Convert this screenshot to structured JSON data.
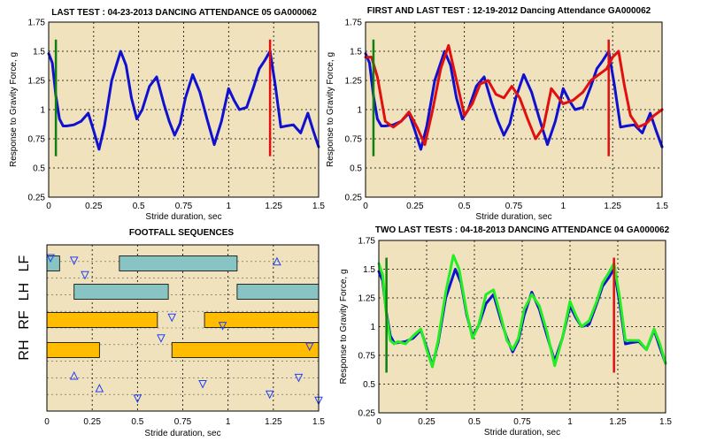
{
  "colors": {
    "plot_bg": "#f0e2bc",
    "blue": "#1010d0",
    "red": "#e01010",
    "green_marker": "#108010",
    "bright_green": "#22ee22",
    "teal_bar": "#88c4c4",
    "orange_bar": "#ffbc00",
    "triangle": "#2040ff"
  },
  "chart_data": [
    {
      "id": "last_test",
      "type": "line",
      "title": "LAST TEST : 04-23-2013 DANCING ATTENDANCE 05 GA000062",
      "xlabel": "Stride duration, sec",
      "ylabel": "Response to Gravity Force, g",
      "xlim": [
        0,
        1.5
      ],
      "ylim": [
        0.25,
        1.75
      ],
      "xticks": [
        "0",
        "0.25",
        "0.5",
        "0.75",
        "1",
        "1.25",
        "1.5"
      ],
      "yticks": [
        "0.25",
        "0.5",
        "0.75",
        "1",
        "1.25",
        "1.5",
        "1.75"
      ],
      "grid": true,
      "markers": [
        {
          "x": 0.04,
          "y0": 0.6,
          "y1": 1.6,
          "color": "green"
        },
        {
          "x": 1.23,
          "y0": 0.6,
          "y1": 1.6,
          "color": "red"
        }
      ],
      "series": [
        {
          "color": "blue",
          "x": [
            0,
            0.02,
            0.04,
            0.06,
            0.08,
            0.1,
            0.14,
            0.18,
            0.22,
            0.25,
            0.28,
            0.31,
            0.35,
            0.4,
            0.43,
            0.46,
            0.49,
            0.52,
            0.56,
            0.6,
            0.64,
            0.67,
            0.7,
            0.73,
            0.76,
            0.8,
            0.84,
            0.88,
            0.92,
            0.96,
            1.0,
            1.03,
            1.06,
            1.1,
            1.14,
            1.17,
            1.2,
            1.23,
            1.26,
            1.29,
            1.32,
            1.36,
            1.4,
            1.44,
            1.47,
            1.5
          ],
          "y": [
            1.48,
            1.4,
            1.12,
            0.92,
            0.86,
            0.86,
            0.87,
            0.9,
            0.97,
            0.82,
            0.66,
            0.86,
            1.25,
            1.5,
            1.38,
            1.1,
            0.92,
            1.0,
            1.2,
            1.28,
            1.05,
            0.9,
            0.78,
            0.88,
            1.1,
            1.3,
            1.15,
            0.92,
            0.7,
            0.9,
            1.18,
            1.08,
            1.0,
            1.02,
            1.2,
            1.35,
            1.42,
            1.5,
            1.2,
            0.85,
            0.86,
            0.87,
            0.8,
            0.97,
            0.82,
            0.68
          ]
        }
      ]
    },
    {
      "id": "first_last",
      "type": "line",
      "title": "FIRST AND LAST TEST : 12-19-2012 Dancing Attendance GA000062",
      "xlabel": "Stride duration, sec",
      "ylabel": "Response to Gravity Force, g",
      "xlim": [
        0,
        1.5
      ],
      "ylim": [
        0.25,
        1.75
      ],
      "xticks": [
        "0",
        "0.25",
        "0.5",
        "0.75",
        "1",
        "1.25",
        "1.5"
      ],
      "yticks": [
        "0.25",
        "0.5",
        "0.75",
        "1",
        "1.25",
        "1.5",
        "1.75"
      ],
      "grid": true,
      "markers": [
        {
          "x": 0.04,
          "y0": 0.6,
          "y1": 1.6,
          "color": "green"
        },
        {
          "x": 1.23,
          "y0": 0.6,
          "y1": 1.6,
          "color": "red"
        }
      ],
      "series": [
        {
          "color": "blue",
          "x": [
            0,
            0.02,
            0.04,
            0.06,
            0.08,
            0.1,
            0.14,
            0.18,
            0.22,
            0.25,
            0.28,
            0.31,
            0.35,
            0.4,
            0.43,
            0.46,
            0.49,
            0.52,
            0.56,
            0.6,
            0.64,
            0.67,
            0.7,
            0.73,
            0.76,
            0.8,
            0.84,
            0.88,
            0.92,
            0.96,
            1.0,
            1.03,
            1.06,
            1.1,
            1.14,
            1.17,
            1.2,
            1.23,
            1.26,
            1.29,
            1.32,
            1.36,
            1.4,
            1.44,
            1.47,
            1.5
          ],
          "y": [
            1.48,
            1.4,
            1.12,
            0.92,
            0.86,
            0.86,
            0.87,
            0.9,
            0.97,
            0.82,
            0.66,
            0.86,
            1.25,
            1.5,
            1.38,
            1.1,
            0.92,
            1.0,
            1.2,
            1.28,
            1.05,
            0.9,
            0.78,
            0.88,
            1.1,
            1.3,
            1.15,
            0.92,
            0.7,
            0.9,
            1.18,
            1.08,
            1.0,
            1.02,
            1.2,
            1.35,
            1.42,
            1.5,
            1.2,
            0.85,
            0.86,
            0.87,
            0.8,
            0.97,
            0.82,
            0.68
          ]
        },
        {
          "color": "red",
          "x": [
            0,
            0.03,
            0.06,
            0.1,
            0.14,
            0.18,
            0.22,
            0.26,
            0.3,
            0.34,
            0.38,
            0.42,
            0.46,
            0.5,
            0.54,
            0.58,
            0.62,
            0.66,
            0.7,
            0.74,
            0.78,
            0.82,
            0.86,
            0.9,
            0.94,
            1.0,
            1.05,
            1.1,
            1.14,
            1.18,
            1.22,
            1.25,
            1.28,
            1.31,
            1.34,
            1.38,
            1.42,
            1.46,
            1.5
          ],
          "y": [
            1.45,
            1.45,
            1.28,
            0.9,
            0.85,
            0.9,
            0.98,
            0.85,
            0.7,
            1.0,
            1.35,
            1.55,
            1.25,
            0.95,
            1.05,
            1.22,
            1.25,
            1.13,
            1.1,
            1.2,
            1.1,
            0.92,
            0.75,
            0.85,
            1.18,
            1.05,
            1.08,
            1.15,
            1.25,
            1.3,
            1.35,
            1.45,
            1.5,
            1.2,
            0.95,
            0.85,
            0.88,
            0.95,
            1.0
          ]
        }
      ]
    },
    {
      "id": "footfall",
      "type": "gantt",
      "title": "FOOTFALL SEQUENCES",
      "xlabel": "Stride duration, sec",
      "xlim": [
        0,
        1.5
      ],
      "xticks": [
        "0",
        "0.25",
        "0.5",
        "0.75",
        "1",
        "1.25",
        "1.5"
      ],
      "grid": true,
      "rows": [
        {
          "label": "LF",
          "color": "teal",
          "intervals": [
            [
              0,
              0.07
            ],
            [
              0.4,
              1.05
            ]
          ]
        },
        {
          "label": "LH",
          "color": "teal",
          "intervals": [
            [
              0.15,
              0.67
            ],
            [
              1.05,
              1.5
            ]
          ]
        },
        {
          "label": "RF",
          "color": "orange",
          "intervals": [
            [
              0,
              0.61
            ],
            [
              0.87,
              1.5
            ]
          ]
        },
        {
          "label": "RH",
          "color": "orange",
          "intervals": [
            [
              0,
              0.29
            ],
            [
              0.69,
              1.5
            ]
          ]
        }
      ],
      "triangles": [
        {
          "x": 0.02,
          "y": 0.32,
          "dir": "down"
        },
        {
          "x": 0.15,
          "y": 0.38,
          "dir": "down"
        },
        {
          "x": 0.21,
          "y": 0.73,
          "dir": "down"
        },
        {
          "x": 0.29,
          "y": 3.45,
          "dir": "up"
        },
        {
          "x": 0.15,
          "y": 3.15,
          "dir": "up"
        },
        {
          "x": 0.5,
          "y": 3.7,
          "dir": "down"
        },
        {
          "x": 0.63,
          "y": 2.25,
          "dir": "down"
        },
        {
          "x": 0.69,
          "y": 1.75,
          "dir": "down"
        },
        {
          "x": 0.86,
          "y": 3.35,
          "dir": "down"
        },
        {
          "x": 0.97,
          "y": 1.95,
          "dir": "down"
        },
        {
          "x": 1.23,
          "y": 3.6,
          "dir": "down"
        },
        {
          "x": 1.27,
          "y": 0.4,
          "dir": "up"
        },
        {
          "x": 1.39,
          "y": 3.2,
          "dir": "down"
        },
        {
          "x": 1.45,
          "y": 2.45,
          "dir": "down"
        },
        {
          "x": 1.5,
          "y": 3.75,
          "dir": "down"
        }
      ]
    },
    {
      "id": "two_last",
      "type": "line",
      "title": "TWO LAST TESTS : 04-18-2013 DANCING ATTENDANCE 04 GA000062",
      "xlabel": "Stride duration, sec",
      "ylabel": "Response to Gravity Force, g",
      "xlim": [
        0,
        1.5
      ],
      "ylim": [
        0.25,
        1.75
      ],
      "xticks": [
        "0",
        "0.25",
        "0.5",
        "0.75",
        "1",
        "1.25",
        "1.5"
      ],
      "yticks": [
        "0.25",
        "0.5",
        "0.75",
        "1",
        "1.25",
        "1.5",
        "1.75"
      ],
      "grid": true,
      "markers": [
        {
          "x": 0.04,
          "y0": 0.6,
          "y1": 1.6,
          "color": "green"
        },
        {
          "x": 1.23,
          "y0": 0.6,
          "y1": 1.6,
          "color": "red"
        }
      ],
      "series": [
        {
          "color": "blue",
          "x": [
            0,
            0.02,
            0.04,
            0.06,
            0.08,
            0.1,
            0.14,
            0.18,
            0.22,
            0.25,
            0.28,
            0.31,
            0.35,
            0.4,
            0.43,
            0.46,
            0.49,
            0.52,
            0.56,
            0.6,
            0.64,
            0.67,
            0.7,
            0.73,
            0.76,
            0.8,
            0.84,
            0.88,
            0.92,
            0.96,
            1.0,
            1.03,
            1.06,
            1.1,
            1.14,
            1.17,
            1.2,
            1.23,
            1.26,
            1.29,
            1.32,
            1.36,
            1.4,
            1.44,
            1.47,
            1.5
          ],
          "y": [
            1.48,
            1.4,
            1.12,
            0.92,
            0.86,
            0.86,
            0.87,
            0.9,
            0.97,
            0.82,
            0.66,
            0.86,
            1.25,
            1.5,
            1.38,
            1.1,
            0.92,
            1.0,
            1.2,
            1.28,
            1.05,
            0.9,
            0.78,
            0.88,
            1.1,
            1.3,
            1.15,
            0.92,
            0.7,
            0.9,
            1.18,
            1.08,
            1.0,
            1.02,
            1.2,
            1.35,
            1.42,
            1.5,
            1.2,
            0.85,
            0.86,
            0.87,
            0.8,
            0.97,
            0.82,
            0.68
          ]
        },
        {
          "color": "bright_green",
          "x": [
            0,
            0.02,
            0.04,
            0.06,
            0.08,
            0.1,
            0.14,
            0.18,
            0.22,
            0.25,
            0.28,
            0.31,
            0.35,
            0.39,
            0.42,
            0.46,
            0.49,
            0.52,
            0.56,
            0.6,
            0.64,
            0.67,
            0.7,
            0.73,
            0.76,
            0.8,
            0.84,
            0.88,
            0.92,
            0.96,
            1.0,
            1.03,
            1.06,
            1.1,
            1.14,
            1.17,
            1.2,
            1.23,
            1.26,
            1.29,
            1.32,
            1.36,
            1.4,
            1.44,
            1.47,
            1.5
          ],
          "y": [
            1.55,
            1.45,
            1.1,
            0.88,
            0.85,
            0.87,
            0.85,
            0.92,
            0.98,
            0.8,
            0.65,
            0.88,
            1.3,
            1.62,
            1.5,
            1.12,
            0.9,
            1.0,
            1.28,
            1.32,
            1.08,
            0.88,
            0.8,
            0.9,
            1.15,
            1.28,
            1.18,
            0.95,
            0.66,
            0.9,
            1.22,
            1.1,
            1.0,
            1.05,
            1.22,
            1.38,
            1.46,
            1.55,
            1.25,
            0.88,
            0.88,
            0.88,
            0.8,
            0.98,
            0.85,
            0.68
          ]
        }
      ]
    }
  ]
}
